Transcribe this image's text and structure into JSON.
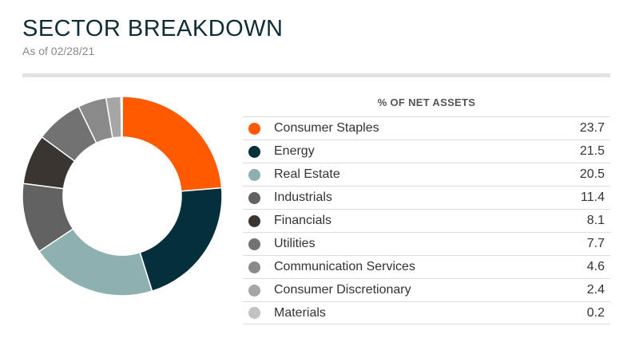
{
  "title": "SECTOR BREAKDOWN",
  "subtitle": "As of 02/28/21",
  "table_header": "% OF NET ASSETS",
  "chart_data": {
    "type": "pie",
    "style": "donut",
    "categories": [
      "Consumer Staples",
      "Energy",
      "Real Estate",
      "Industrials",
      "Financials",
      "Utilities",
      "Communication Services",
      "Consumer Discretionary",
      "Materials"
    ],
    "values": [
      23.7,
      21.5,
      20.5,
      11.4,
      8.1,
      7.7,
      4.6,
      2.4,
      0.2
    ],
    "value_labels": [
      "23.7",
      "21.5",
      "20.5",
      "11.4",
      "8.1",
      "7.7",
      "4.6",
      "2.4",
      "0.2"
    ],
    "colors": [
      "#ff5a00",
      "#03303a",
      "#8fb0b0",
      "#626262",
      "#3b3531",
      "#727272",
      "#8a8a8a",
      "#a6a6a6",
      "#c2c2c2"
    ],
    "legend": "right"
  }
}
